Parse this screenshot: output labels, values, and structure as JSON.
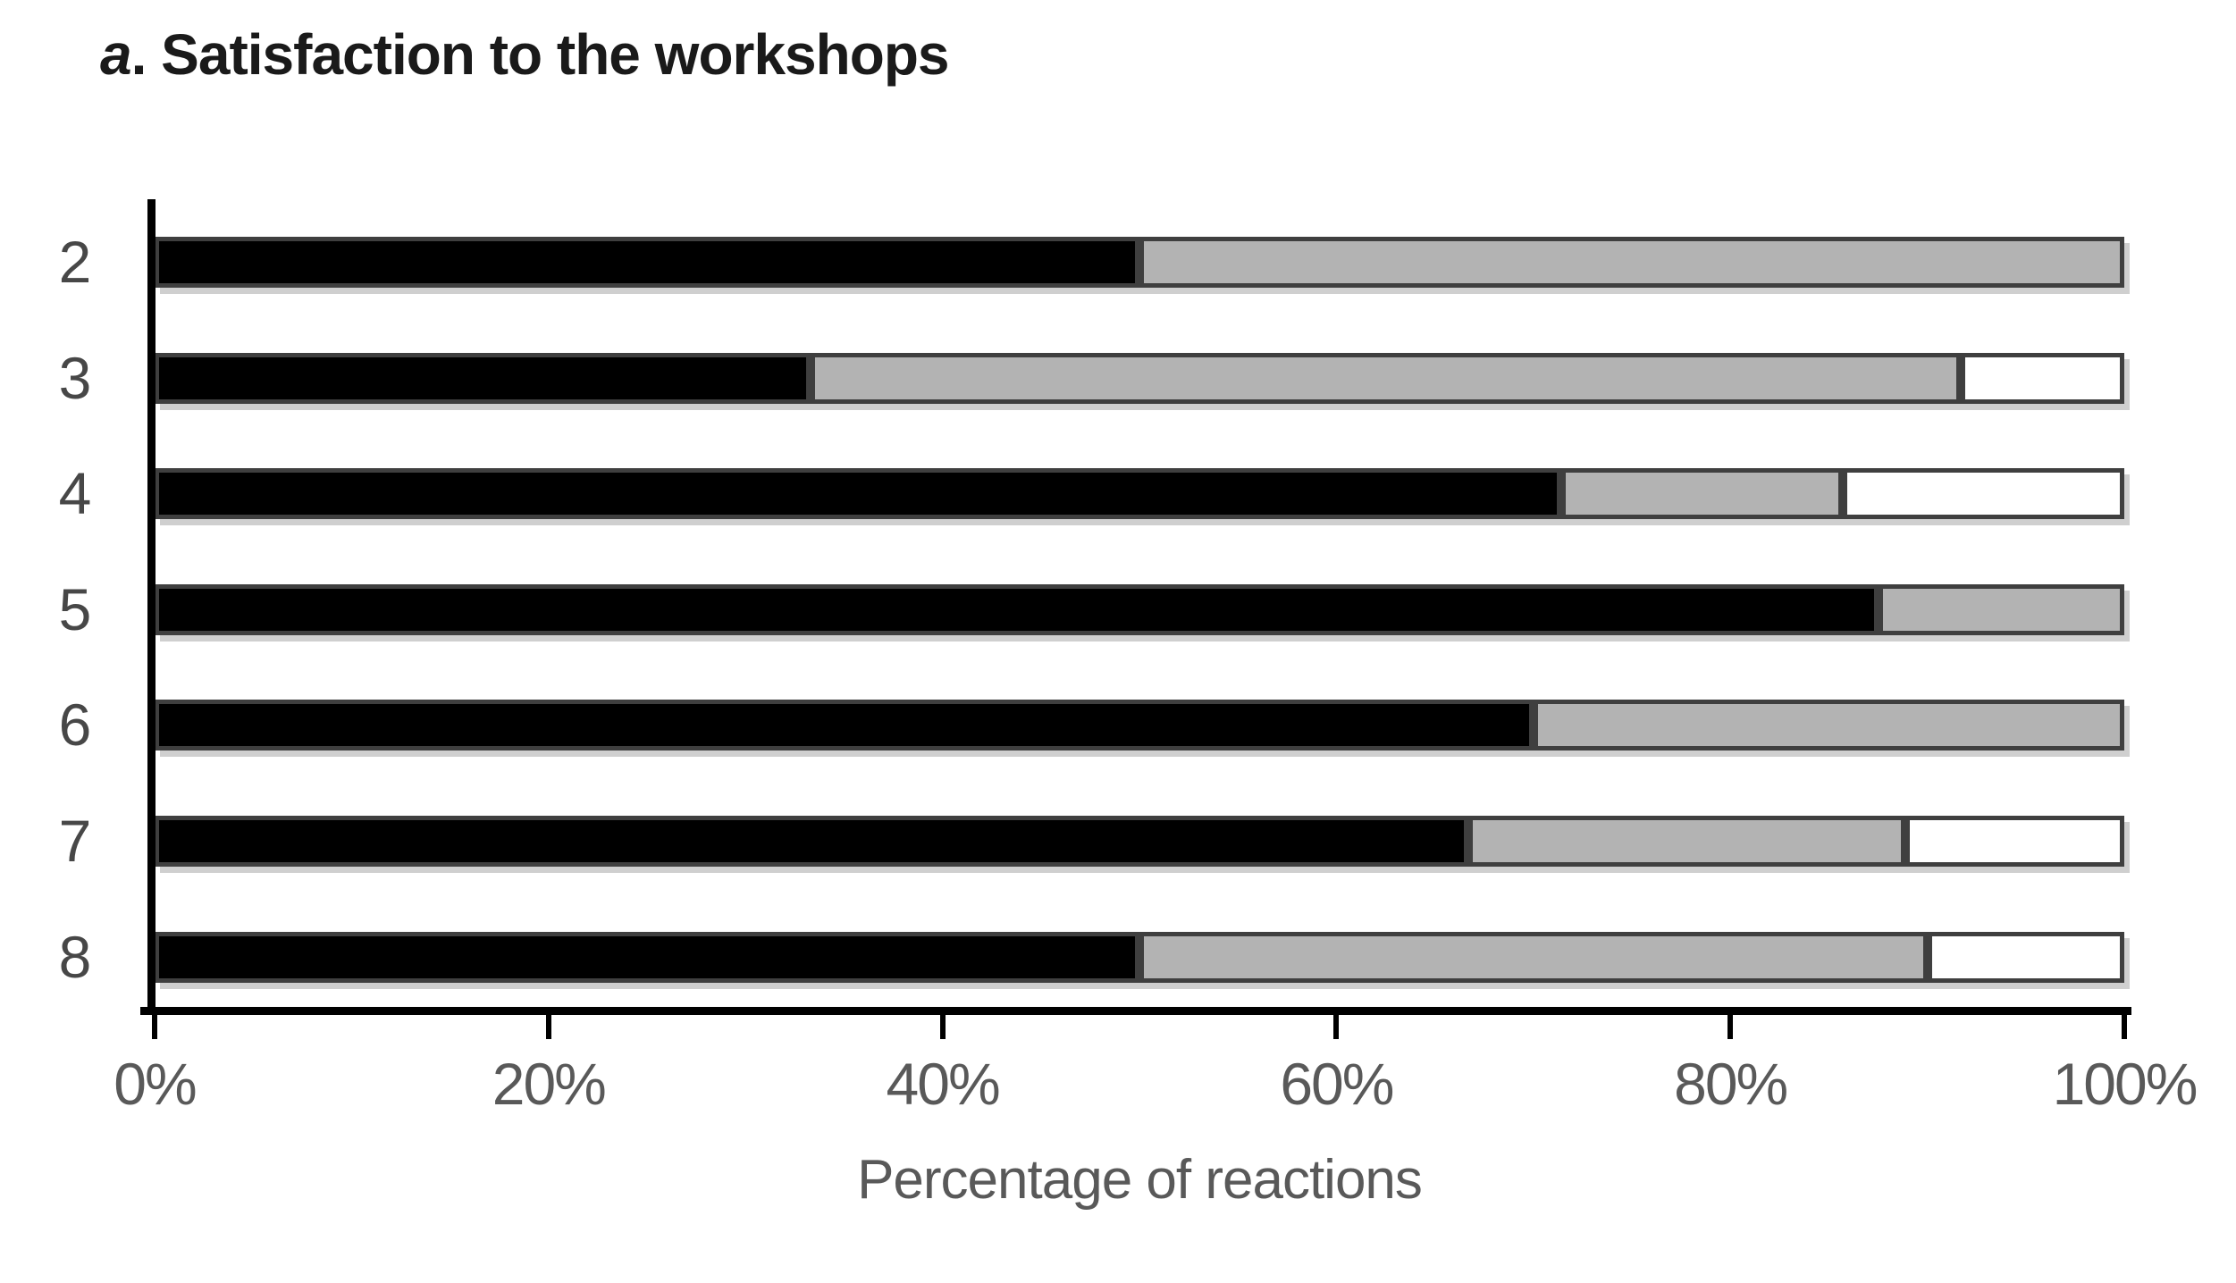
{
  "title": {
    "prefix": "a",
    "rest": ". Satisfaction to the workshops"
  },
  "x_axis": {
    "title": "Percentage of reactions",
    "ticks": [
      {
        "value": 0,
        "label": "0%"
      },
      {
        "value": 20,
        "label": "20%"
      },
      {
        "value": 40,
        "label": "40%"
      },
      {
        "value": 60,
        "label": "60%"
      },
      {
        "value": 80,
        "label": "80%"
      },
      {
        "value": 100,
        "label": "100%"
      }
    ]
  },
  "y_axis": {
    "labels": [
      "2",
      "3",
      "4",
      "5",
      "6",
      "7",
      "8"
    ]
  },
  "colors": {
    "black_fill": "#000000",
    "gray_fill": "#b3b3b3",
    "white_fill": "#ffffff",
    "segment_border": "#3f3f3f",
    "axis_line": "#000000",
    "axis_text": "#595959",
    "title_text": "#1a1a1a"
  },
  "chart_data": {
    "type": "bar",
    "orientation": "horizontal",
    "stacked": true,
    "title": "a. Satisfaction to the workshops",
    "xlabel": "Percentage of reactions",
    "ylabel": "",
    "xlim": [
      0,
      100
    ],
    "x_tick_labels": [
      "0%",
      "20%",
      "40%",
      "60%",
      "80%",
      "100%"
    ],
    "grid": false,
    "legend": false,
    "categories": [
      "2",
      "3",
      "4",
      "5",
      "6",
      "7",
      "8"
    ],
    "series": [
      {
        "name": "black",
        "color": "#000000",
        "values": [
          50,
          33.3,
          71.4,
          87.5,
          70,
          66.7,
          50
        ]
      },
      {
        "name": "gray",
        "color": "#b3b3b3",
        "values": [
          50,
          58.4,
          14.3,
          12.5,
          30,
          22.2,
          40
        ]
      },
      {
        "name": "white",
        "color": "#ffffff",
        "values": [
          0,
          8.3,
          14.3,
          0,
          0,
          11.1,
          10
        ]
      }
    ]
  }
}
